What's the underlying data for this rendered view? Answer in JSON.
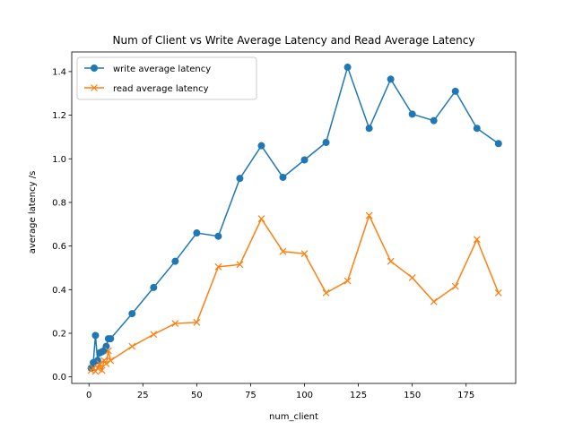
{
  "chart_data": {
    "type": "line",
    "title": "Num of Client vs Write Average Latency and Read Average Latency",
    "xlabel": "num_client",
    "ylabel": "average latency /s",
    "xlim": [
      -8,
      198
    ],
    "ylim": [
      -0.03,
      1.49
    ],
    "xticks": [
      0,
      25,
      50,
      75,
      100,
      125,
      150,
      175
    ],
    "yticks": [
      0.0,
      0.2,
      0.4,
      0.6,
      0.8,
      1.0,
      1.2,
      1.4
    ],
    "grid": false,
    "legend_position": "top-left",
    "series": [
      {
        "name": "write average latency",
        "color": "#1f77b4",
        "marker": "circle",
        "x": [
          1,
          2,
          3,
          4,
          5,
          6,
          7,
          8,
          9,
          10,
          20,
          30,
          40,
          50,
          60,
          70,
          80,
          90,
          100,
          110,
          120,
          130,
          140,
          150,
          160,
          170,
          180,
          190
        ],
        "y": [
          0.04,
          0.065,
          0.19,
          0.075,
          0.11,
          0.115,
          0.12,
          0.14,
          0.175,
          0.175,
          0.29,
          0.41,
          0.53,
          0.66,
          0.645,
          0.91,
          1.06,
          0.915,
          0.995,
          1.075,
          1.42,
          1.14,
          1.365,
          1.205,
          1.175,
          1.31,
          1.14,
          1.07
        ]
      },
      {
        "name": "read average latency",
        "color": "#ff7f0e",
        "marker": "x",
        "x": [
          1,
          2,
          3,
          4,
          5,
          6,
          7,
          8,
          9,
          10,
          20,
          30,
          40,
          50,
          60,
          70,
          80,
          90,
          100,
          110,
          120,
          130,
          140,
          150,
          160,
          170,
          180,
          190
        ],
        "y": [
          0.03,
          0.04,
          0.025,
          0.04,
          0.06,
          0.03,
          0.075,
          0.06,
          0.12,
          0.075,
          0.14,
          0.195,
          0.245,
          0.25,
          0.505,
          0.515,
          0.725,
          0.575,
          0.565,
          0.385,
          0.44,
          0.74,
          0.53,
          0.455,
          0.345,
          0.415,
          0.63,
          0.385
        ]
      }
    ]
  }
}
